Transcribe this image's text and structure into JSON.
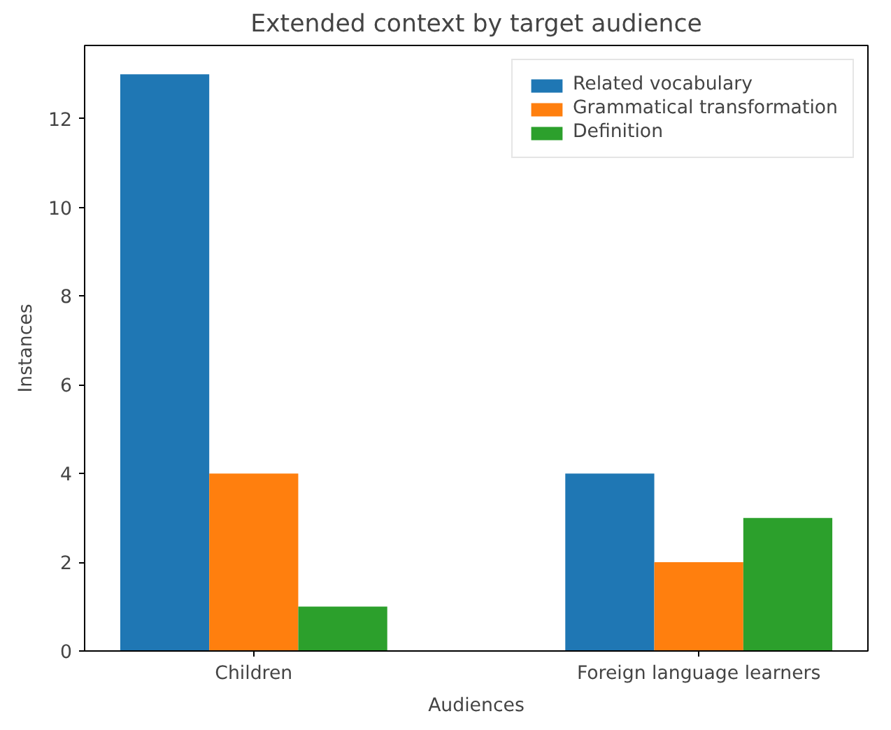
{
  "chart_data": {
    "type": "bar",
    "title": "Extended context by target audience",
    "xlabel": "Audiences",
    "ylabel": "Instances",
    "categories": [
      "Children",
      "Foreign language learners"
    ],
    "series": [
      {
        "name": "Related vocabulary",
        "color": "#1f77b4",
        "values": [
          13,
          4
        ]
      },
      {
        "name": "Grammatical transformation",
        "color": "#ff7f0e",
        "values": [
          4,
          2
        ]
      },
      {
        "name": "Definition",
        "color": "#2ca02c",
        "values": [
          1,
          3
        ]
      }
    ],
    "ylim": [
      0,
      13.65
    ],
    "yticks": [
      0,
      2,
      4,
      6,
      8,
      10,
      12
    ],
    "grid": false,
    "legend": "top right"
  }
}
